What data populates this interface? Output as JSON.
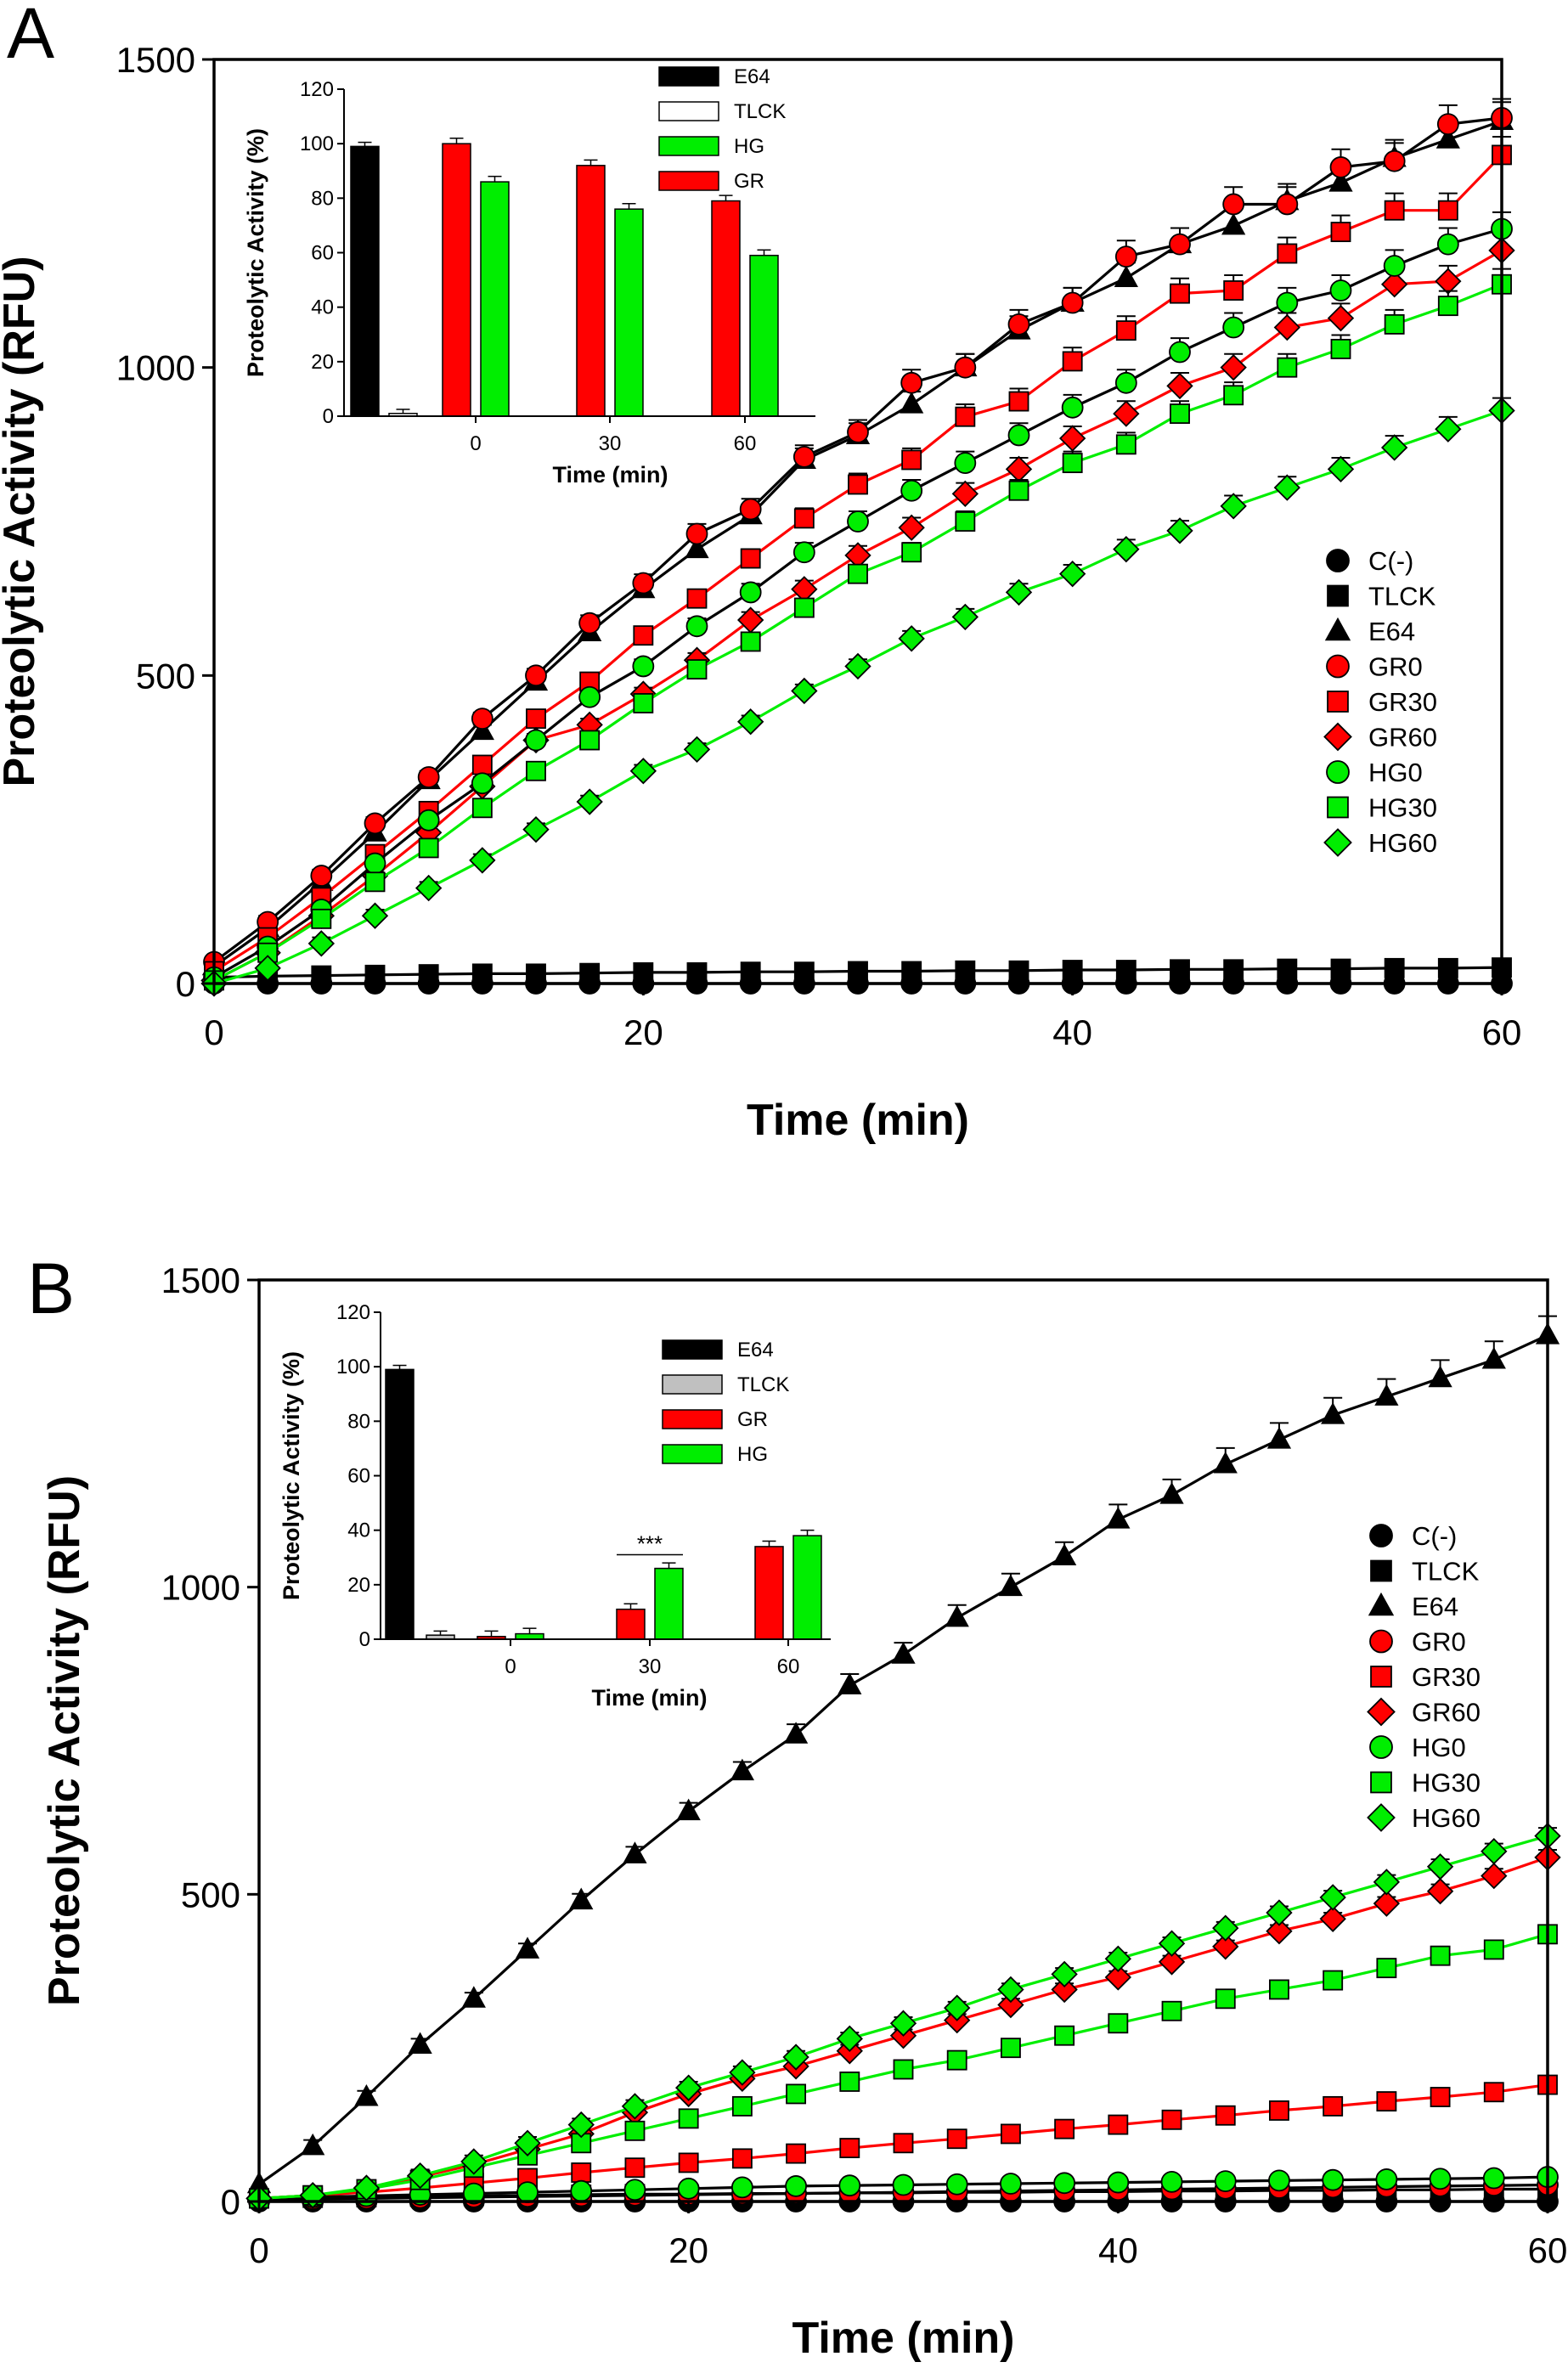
{
  "chart_data": [
    {
      "panel": "A",
      "type": "line",
      "xlabel": "Time (min)",
      "ylabel": "Proteolytic Activity (RFU)",
      "xlim": [
        0,
        60
      ],
      "ylim": [
        0,
        1500
      ],
      "xticks": [
        0,
        20,
        40,
        60
      ],
      "yticks": [
        0,
        500,
        1000,
        1500
      ],
      "legend_position": "right",
      "x": [
        0,
        2.5,
        5,
        7.5,
        10,
        12.5,
        15,
        17.5,
        20,
        22.5,
        25,
        27.5,
        30,
        32.5,
        35,
        37.5,
        40,
        42.5,
        45,
        47.5,
        50,
        52.5,
        55,
        57.5,
        60
      ],
      "series": [
        {
          "name": "C(-)",
          "marker": "circle",
          "color": "#000000",
          "line": "#000000",
          "values": [
            0,
            0,
            0,
            0,
            0,
            0,
            0,
            0,
            0,
            0,
            0,
            0,
            0,
            0,
            0,
            0,
            0,
            0,
            0,
            0,
            0,
            0,
            0,
            0,
            0
          ]
        },
        {
          "name": "TLCK",
          "marker": "square",
          "color": "#000000",
          "line": "#000000",
          "values": [
            10,
            12,
            13,
            14,
            15,
            16,
            16,
            17,
            18,
            18,
            19,
            19,
            20,
            20,
            21,
            21,
            22,
            22,
            23,
            23,
            24,
            24,
            25,
            25,
            26
          ]
        },
        {
          "name": "E64",
          "marker": "triangle",
          "color": "#000000",
          "line": "#000000",
          "values": [
            28,
            90,
            165,
            245,
            330,
            410,
            490,
            570,
            640,
            705,
            760,
            850,
            890,
            940,
            1000,
            1060,
            1105,
            1145,
            1200,
            1230,
            1270,
            1300,
            1340,
            1370,
            1400
          ]
        },
        {
          "name": "GR0",
          "marker": "circle",
          "color": "#ff0000",
          "line": "#000000",
          "values": [
            35,
            100,
            175,
            260,
            335,
            430,
            500,
            585,
            650,
            730,
            770,
            855,
            895,
            975,
            1000,
            1070,
            1105,
            1180,
            1200,
            1265,
            1265,
            1325,
            1335,
            1395,
            1405
          ]
        },
        {
          "name": "GR30",
          "marker": "square",
          "color": "#ff0000",
          "line": "#ff0000",
          "values": [
            20,
            75,
            140,
            210,
            280,
            355,
            430,
            490,
            565,
            625,
            690,
            755,
            810,
            850,
            920,
            945,
            1010,
            1060,
            1120,
            1125,
            1185,
            1220,
            1255,
            1255,
            1345
          ]
        },
        {
          "name": "GR60",
          "marker": "diamond",
          "color": "#ff0000",
          "line": "#ff0000",
          "values": [
            5,
            50,
            110,
            175,
            245,
            320,
            395,
            420,
            470,
            525,
            590,
            640,
            695,
            740,
            795,
            835,
            885,
            925,
            970,
            1000,
            1065,
            1080,
            1135,
            1140,
            1190
          ]
        },
        {
          "name": "HG0",
          "marker": "circle",
          "color": "#00ee00",
          "line": "#000000",
          "values": [
            10,
            60,
            120,
            195,
            265,
            325,
            395,
            465,
            515,
            580,
            635,
            700,
            750,
            800,
            845,
            890,
            935,
            975,
            1025,
            1065,
            1105,
            1125,
            1165,
            1200,
            1225
          ]
        },
        {
          "name": "HG30",
          "marker": "square",
          "color": "#00ee00",
          "line": "#00ee00",
          "values": [
            5,
            50,
            105,
            165,
            220,
            285,
            345,
            395,
            455,
            510,
            555,
            610,
            665,
            700,
            750,
            800,
            845,
            875,
            925,
            955,
            1000,
            1030,
            1070,
            1100,
            1135
          ]
        },
        {
          "name": "HG60",
          "marker": "diamond",
          "color": "#00ee00",
          "line": "#00ee00",
          "values": [
            0,
            25,
            65,
            110,
            155,
            200,
            250,
            295,
            345,
            380,
            425,
            475,
            515,
            560,
            595,
            635,
            665,
            705,
            735,
            775,
            805,
            835,
            870,
            900,
            930
          ]
        }
      ],
      "inset": {
        "type": "bar",
        "xlabel": "Time (min)",
        "ylabel": "Proteolytic Activity (%)",
        "ylim": [
          0,
          120
        ],
        "yticks": [
          0,
          20,
          40,
          60,
          80,
          100,
          120
        ],
        "categories": [
          "0",
          "30",
          "60"
        ],
        "controls": [
          {
            "name": "E64",
            "value": 99,
            "color": "#000000"
          },
          {
            "name": "TLCK",
            "value": 1,
            "color": "#ffffff"
          }
        ],
        "series": [
          {
            "name": "GR",
            "color": "#ff0000",
            "values": [
              100,
              92,
              79
            ]
          },
          {
            "name": "HG",
            "color": "#00ee00",
            "values": [
              86,
              76,
              59
            ]
          }
        ],
        "legend": [
          "E64",
          "TLCK",
          "HG",
          "GR"
        ],
        "annotations": []
      }
    },
    {
      "panel": "B",
      "type": "line",
      "xlabel": "Time (min)",
      "ylabel": "Proteolytic Activity (RFU)",
      "xlim": [
        0,
        60
      ],
      "ylim": [
        0,
        1500
      ],
      "xticks": [
        0,
        20,
        40,
        60
      ],
      "yticks": [
        0,
        500,
        1000,
        1500
      ],
      "legend_position": "right",
      "x": [
        0,
        2.5,
        5,
        7.5,
        10,
        12.5,
        15,
        17.5,
        20,
        22.5,
        25,
        27.5,
        30,
        32.5,
        35,
        37.5,
        40,
        42.5,
        45,
        47.5,
        50,
        52.5,
        55,
        57.5,
        60
      ],
      "series": [
        {
          "name": "C(-)",
          "marker": "circle",
          "color": "#000000",
          "line": "#000000",
          "values": [
            0,
            0,
            0,
            0,
            0,
            0,
            0,
            0,
            0,
            0,
            0,
            0,
            0,
            0,
            0,
            0,
            0,
            0,
            0,
            0,
            0,
            0,
            0,
            0,
            0
          ]
        },
        {
          "name": "TLCK",
          "marker": "square",
          "color": "#000000",
          "line": "#000000",
          "values": [
            5,
            6,
            7,
            8,
            9,
            10,
            11,
            12,
            12,
            13,
            13,
            14,
            14,
            15,
            15,
            16,
            16,
            17,
            17,
            18,
            18,
            19,
            19,
            20,
            20
          ]
        },
        {
          "name": "E64",
          "marker": "triangle",
          "color": "#000000",
          "line": "#000000",
          "values": [
            28,
            90,
            170,
            255,
            330,
            410,
            490,
            565,
            635,
            700,
            760,
            840,
            890,
            950,
            1000,
            1050,
            1110,
            1150,
            1200,
            1240,
            1280,
            1310,
            1340,
            1370,
            1410
          ]
        },
        {
          "name": "GR0",
          "marker": "circle",
          "color": "#ff0000",
          "line": "#000000",
          "values": [
            3,
            4,
            5,
            6,
            7,
            8,
            9,
            10,
            11,
            12,
            13,
            14,
            15,
            16,
            17,
            18,
            19,
            20,
            21,
            22,
            23,
            24,
            25,
            26,
            27
          ]
        },
        {
          "name": "GR30",
          "marker": "square",
          "color": "#ff0000",
          "line": "#ff0000",
          "values": [
            5,
            10,
            15,
            22,
            30,
            38,
            47,
            55,
            63,
            70,
            78,
            87,
            95,
            102,
            110,
            118,
            125,
            133,
            140,
            148,
            155,
            163,
            170,
            178,
            190
          ]
        },
        {
          "name": "GR60",
          "marker": "diamond",
          "color": "#ff0000",
          "line": "#ff0000",
          "values": [
            5,
            10,
            20,
            40,
            60,
            85,
            110,
            145,
            175,
            200,
            220,
            245,
            270,
            295,
            320,
            345,
            365,
            390,
            415,
            440,
            460,
            485,
            505,
            530,
            560
          ]
        },
        {
          "name": "HG0",
          "marker": "circle",
          "color": "#00ee00",
          "line": "#000000",
          "values": [
            5,
            7,
            9,
            11,
            13,
            15,
            17,
            19,
            21,
            23,
            25,
            26,
            27,
            28,
            29,
            30,
            31,
            32,
            33,
            34,
            35,
            36,
            37,
            38,
            40
          ]
        },
        {
          "name": "HG30",
          "marker": "square",
          "color": "#00ee00",
          "line": "#00ee00",
          "values": [
            5,
            10,
            20,
            35,
            55,
            75,
            95,
            115,
            135,
            155,
            175,
            195,
            215,
            230,
            250,
            270,
            290,
            310,
            330,
            345,
            360,
            380,
            400,
            410,
            435
          ]
        },
        {
          "name": "HG60",
          "marker": "diamond",
          "color": "#00ee00",
          "line": "#00ee00",
          "values": [
            5,
            10,
            22,
            42,
            65,
            95,
            125,
            155,
            185,
            210,
            235,
            265,
            290,
            315,
            345,
            370,
            395,
            420,
            445,
            470,
            495,
            520,
            545,
            570,
            595
          ]
        }
      ],
      "inset": {
        "type": "bar",
        "xlabel": "Time (min)",
        "ylabel": "Proteolytic Activity (%)",
        "ylim": [
          0,
          120
        ],
        "yticks": [
          0,
          20,
          40,
          60,
          80,
          100,
          120
        ],
        "categories": [
          "0",
          "30",
          "60"
        ],
        "controls": [
          {
            "name": "E64",
            "value": 99,
            "color": "#000000"
          },
          {
            "name": "TLCK",
            "value": 1.5,
            "color": "#c0c0c0"
          }
        ],
        "series": [
          {
            "name": "GR",
            "color": "#ff0000",
            "values": [
              1,
              11,
              34
            ]
          },
          {
            "name": "HG",
            "color": "#00ee00",
            "values": [
              2,
              26,
              38
            ]
          }
        ],
        "legend": [
          "E64",
          "TLCK",
          "GR",
          "HG"
        ],
        "annotations": [
          {
            "text": "***",
            "category": "30"
          }
        ]
      }
    }
  ]
}
